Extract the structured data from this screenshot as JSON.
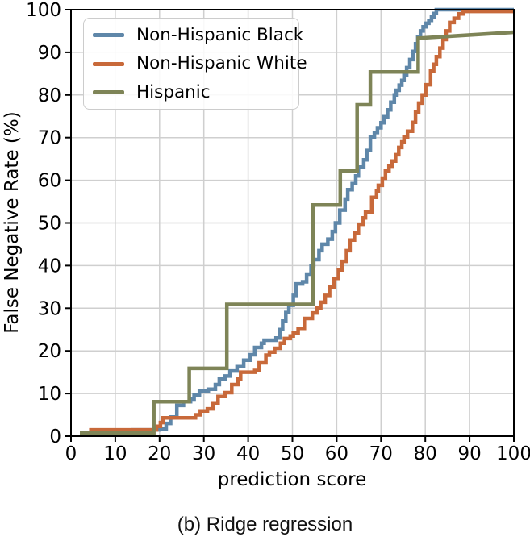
{
  "chart_data": {
    "type": "line",
    "subtype": "step-ecdf",
    "caption": "(b) Ridge regression",
    "xlabel": "prediction score",
    "ylabel": "False Negative Rate (%)",
    "xlim": [
      0,
      100
    ],
    "ylim": [
      0,
      100
    ],
    "x_ticks": [
      0,
      10,
      20,
      30,
      40,
      50,
      60,
      70,
      80,
      90,
      100
    ],
    "y_ticks": [
      0,
      10,
      20,
      30,
      40,
      50,
      60,
      70,
      80,
      90,
      100
    ],
    "grid": true,
    "grid_color": "#cfcfcf",
    "axis_color": "#000000",
    "legend_position": "upper-left",
    "series": [
      {
        "name": "Non-Hispanic Black",
        "color": "#5f87a9",
        "interpolation": "step-after",
        "points": [
          [
            2,
            0.7
          ],
          [
            14,
            1.5
          ],
          [
            20,
            1.7
          ],
          [
            21.5,
            3
          ],
          [
            22.5,
            4.5
          ],
          [
            23.9,
            7.2
          ],
          [
            25.4,
            8.1
          ],
          [
            27,
            8.7
          ],
          [
            27.8,
            9.6
          ],
          [
            29,
            10.6
          ],
          [
            31,
            11
          ],
          [
            32.6,
            12.1
          ],
          [
            33.5,
            13.4
          ],
          [
            34.8,
            14.1
          ],
          [
            35.9,
            15.3
          ],
          [
            37.5,
            16.3
          ],
          [
            39,
            17.8
          ],
          [
            40.5,
            19.1
          ],
          [
            41.5,
            20.8
          ],
          [
            43,
            21.8
          ],
          [
            43.6,
            22.5
          ],
          [
            46.3,
            23
          ],
          [
            47.2,
            25
          ],
          [
            47.8,
            27
          ],
          [
            48.5,
            29
          ],
          [
            49.2,
            30.7
          ],
          [
            50.2,
            33
          ],
          [
            50.8,
            35.7
          ],
          [
            52.3,
            36.2
          ],
          [
            53.2,
            38
          ],
          [
            54.2,
            40
          ],
          [
            54.8,
            41.4
          ],
          [
            56,
            43.5
          ],
          [
            56.7,
            45
          ],
          [
            58,
            46.2
          ],
          [
            59,
            48
          ],
          [
            59.7,
            50
          ],
          [
            60.7,
            53
          ],
          [
            61.9,
            55.6
          ],
          [
            62.5,
            57.8
          ],
          [
            63.5,
            59.2
          ],
          [
            64.3,
            61
          ],
          [
            64.9,
            63.1
          ],
          [
            66.1,
            64.8
          ],
          [
            66.8,
            67
          ],
          [
            67.6,
            70.1
          ],
          [
            68.5,
            71.2
          ],
          [
            69.2,
            72.3
          ],
          [
            70,
            73.5
          ],
          [
            70.7,
            74.9
          ],
          [
            71.5,
            76.5
          ],
          [
            72.2,
            78.3
          ],
          [
            73,
            80
          ],
          [
            73.4,
            81.1
          ],
          [
            74.1,
            82.3
          ],
          [
            74.7,
            83.4
          ],
          [
            75.2,
            84.6
          ],
          [
            75.8,
            86.4
          ],
          [
            76.5,
            88.3
          ],
          [
            77.2,
            90.2
          ],
          [
            77.8,
            92
          ],
          [
            78.3,
            93.6
          ],
          [
            78.9,
            95
          ],
          [
            79.5,
            96
          ],
          [
            80.2,
            96.8
          ],
          [
            80.8,
            97.5
          ],
          [
            81.4,
            98.3
          ],
          [
            82,
            99.1
          ],
          [
            82.5,
            100
          ],
          [
            100,
            100
          ]
        ]
      },
      {
        "name": "Non-Hispanic White",
        "color": "#c8693a",
        "interpolation": "step-after",
        "points": [
          [
            2.7,
            0.7
          ],
          [
            4.5,
            1.5
          ],
          [
            19.3,
            2.3
          ],
          [
            20.2,
            3.2
          ],
          [
            20.8,
            4.3
          ],
          [
            28.1,
            5
          ],
          [
            29.2,
            5.9
          ],
          [
            30.8,
            6.4
          ],
          [
            32.1,
            7.8
          ],
          [
            33.2,
            9.3
          ],
          [
            34.8,
            10.2
          ],
          [
            36.3,
            12.1
          ],
          [
            37.7,
            13.4
          ],
          [
            38.3,
            15
          ],
          [
            41.5,
            15.4
          ],
          [
            42.5,
            17.2
          ],
          [
            44,
            19
          ],
          [
            44.8,
            19.7
          ],
          [
            46,
            20.6
          ],
          [
            47.3,
            21.8
          ],
          [
            48.2,
            22.9
          ],
          [
            49.5,
            23.5
          ],
          [
            50.2,
            24.2
          ],
          [
            51.3,
            25.3
          ],
          [
            52.7,
            27.6
          ],
          [
            54.5,
            28.9
          ],
          [
            55.5,
            30
          ],
          [
            56.4,
            31.4
          ],
          [
            57.4,
            33
          ],
          [
            58.4,
            35
          ],
          [
            59.4,
            37
          ],
          [
            60.4,
            39
          ],
          [
            61.2,
            41
          ],
          [
            62.2,
            43.5
          ],
          [
            63,
            46
          ],
          [
            64,
            47.6
          ],
          [
            64.9,
            49.7
          ],
          [
            66,
            51.2
          ],
          [
            66.5,
            52.6
          ],
          [
            67.9,
            56
          ],
          [
            69,
            57.5
          ],
          [
            69.4,
            58.8
          ],
          [
            70.3,
            60.5
          ],
          [
            71,
            62.2
          ],
          [
            71.8,
            63.3
          ],
          [
            72.5,
            64.5
          ],
          [
            73.3,
            66
          ],
          [
            74,
            67.7
          ],
          [
            74.7,
            69
          ],
          [
            75.2,
            70.1
          ],
          [
            76,
            71.5
          ],
          [
            77.1,
            73.6
          ],
          [
            77.8,
            76
          ],
          [
            78.5,
            78.1
          ],
          [
            79.3,
            80
          ],
          [
            80.1,
            82.4
          ],
          [
            81.2,
            85.6
          ],
          [
            81.9,
            87.2
          ],
          [
            82.5,
            89
          ],
          [
            83.3,
            91
          ],
          [
            84,
            93
          ],
          [
            84.7,
            95
          ],
          [
            85.5,
            97
          ],
          [
            86.5,
            98
          ],
          [
            87.5,
            99
          ],
          [
            88.5,
            99.6
          ],
          [
            100,
            99.6
          ]
        ]
      },
      {
        "name": "Hispanic",
        "color": "#7e8457",
        "interpolation": "linear",
        "points": [
          [
            2,
            0.8
          ],
          [
            18.7,
            0.8
          ],
          [
            18.7,
            8.1
          ],
          [
            26.7,
            8.1
          ],
          [
            26.7,
            15.9
          ],
          [
            35.2,
            15.9
          ],
          [
            35.2,
            30.9
          ],
          [
            54.6,
            30.9
          ],
          [
            54.6,
            54.2
          ],
          [
            60.8,
            54.2
          ],
          [
            60.8,
            62.2
          ],
          [
            64.6,
            62.2
          ],
          [
            64.6,
            77.7
          ],
          [
            67.6,
            77.7
          ],
          [
            67.6,
            85.4
          ],
          [
            78.4,
            85.4
          ],
          [
            78.4,
            93.3
          ],
          [
            100,
            94.7
          ]
        ]
      }
    ]
  }
}
